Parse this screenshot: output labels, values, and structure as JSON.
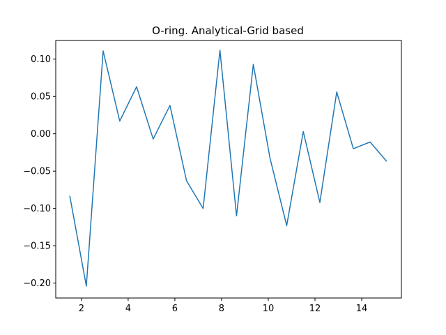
{
  "chart_data": {
    "type": "line",
    "title": "O-ring. Analytical-Grid based",
    "xlabel": "",
    "ylabel": "",
    "xlim": [
      0.9,
      15.7
    ],
    "ylim": [
      -0.22,
      0.125
    ],
    "grid": false,
    "x_ticks": [
      2,
      4,
      6,
      8,
      10,
      12,
      14
    ],
    "x_tick_labels": [
      "2",
      "4",
      "6",
      "8",
      "10",
      "12",
      "14"
    ],
    "y_ticks": [
      0.1,
      0.05,
      0.0,
      -0.05,
      -0.1,
      -0.15,
      -0.2
    ],
    "y_tick_labels": [
      "0.10",
      "0.05",
      "0.00",
      "−0.05",
      "−0.10",
      "−0.15",
      "−0.20"
    ],
    "series": [
      {
        "color": "#1f77b4",
        "x": [
          1.5,
          2.21,
          2.93,
          3.64,
          4.36,
          5.07,
          5.79,
          6.5,
          7.21,
          7.93,
          8.64,
          9.36,
          10.07,
          10.79,
          11.5,
          12.21,
          12.93,
          13.64,
          14.36,
          15.07
        ],
        "y": [
          -0.083,
          -0.204,
          0.111,
          0.017,
          0.063,
          -0.007,
          0.038,
          -0.063,
          -0.1,
          0.112,
          -0.11,
          0.093,
          -0.032,
          -0.123,
          0.003,
          -0.092,
          0.056,
          -0.02,
          -0.011,
          -0.037
        ]
      }
    ]
  }
}
